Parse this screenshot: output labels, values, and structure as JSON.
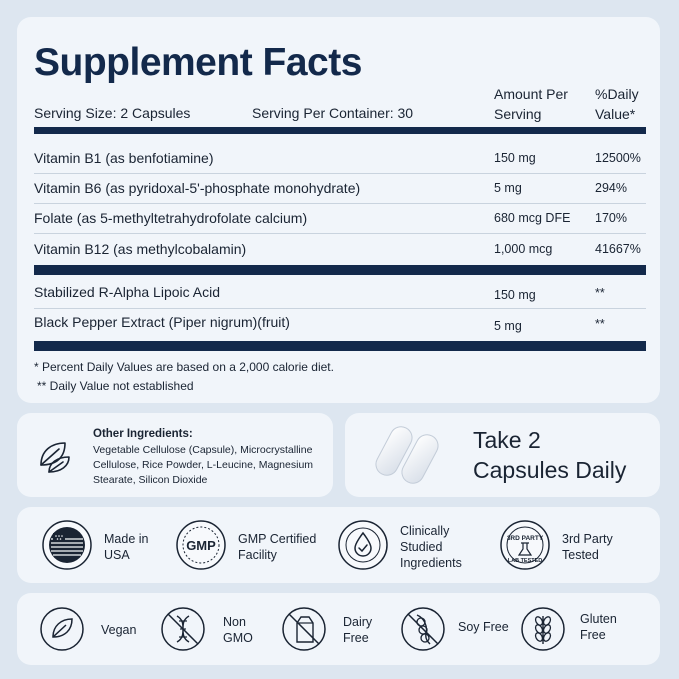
{
  "facts": {
    "title": "Supplement Facts",
    "serving_size": "Serving Size: 2 Capsules",
    "serving_per_container": "Serving Per Container: 30",
    "amount_header_1": "Amount Per",
    "amount_header_2": "Serving",
    "dv_header_1": "%Daily",
    "dv_header_2": "Value*",
    "rows": [
      {
        "name": "Vitamin B1 (as benfotiamine)",
        "amount": "150 mg",
        "dv": "12500%"
      },
      {
        "name": "Vitamin B6 (as pyridoxal-5'-phosphate monohydrate)",
        "amount": "5 mg",
        "dv": "294%"
      },
      {
        "name": "Folate (as 5-methyltetrahydrofolate calcium)",
        "amount": "680 mcg DFE",
        "dv": "170%"
      },
      {
        "name": "Vitamin B12 (as methylcobalamin)",
        "amount": "1,000 mcg",
        "dv": "41667%"
      }
    ],
    "rows2": [
      {
        "name": "Stabilized R-Alpha Lipoic Acid",
        "amount": "150 mg",
        "dv": "**"
      },
      {
        "name": "Black Pepper Extract (Piper nigrum)(fruit)",
        "amount": "5 mg",
        "dv": "**"
      }
    ],
    "footnote_1": "* Percent Daily Values are based on a 2,000 calorie diet.",
    "footnote_2": "** Daily Value not established"
  },
  "other": {
    "heading": "Other Ingredients:",
    "line1": "Vegetable Cellulose (Capsule), Microcrystalline",
    "line2": "Cellulose, Rice Powder, L-Leucine, Magnesium",
    "line3": "Stearate, Silicon Dioxide"
  },
  "dose": {
    "line1": "Take 2",
    "line2": "Capsules Daily"
  },
  "certs": [
    {
      "l1": "Made in",
      "l2": "USA",
      "l3": "",
      "icon": "usa-flag-badge-icon"
    },
    {
      "l1": "GMP Certified",
      "l2": "Facility",
      "l3": "",
      "icon": "gmp-badge-icon"
    },
    {
      "l1": "Clinically",
      "l2": "Studied",
      "l3": "Ingredients",
      "icon": "clinically-studied-badge-icon"
    },
    {
      "l1": "3rd Party",
      "l2": "Tested",
      "l3": "",
      "icon": "third-party-lab-tested-icon"
    }
  ],
  "gmp_badge_text": "GMP",
  "third_party_badge": {
    "top": "3RD PARTY",
    "bottom": "LAB TESTED"
  },
  "free_from": [
    {
      "l1": "Vegan",
      "l2": "",
      "icon": "leaf-icon"
    },
    {
      "l1": "Non",
      "l2": "GMO",
      "icon": "non-gmo-dna-icon"
    },
    {
      "l1": "Dairy",
      "l2": "Free",
      "icon": "dairy-free-icon"
    },
    {
      "l1": "Soy Free",
      "l2": "",
      "icon": "soy-free-icon"
    },
    {
      "l1": "Gluten",
      "l2": "Free",
      "icon": "gluten-free-icon"
    }
  ],
  "colors": {
    "navy": "#13294b",
    "card": "#f1f5fa",
    "background": "#dde6f0"
  }
}
